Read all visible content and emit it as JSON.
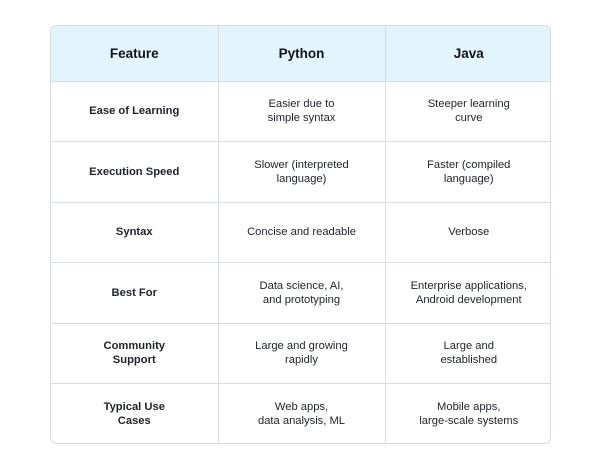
{
  "table": {
    "headers": [
      "Feature",
      "Python",
      "Java"
    ],
    "rows": [
      [
        "Ease of Learning",
        "Easier due to\nsimple syntax",
        "Steeper learning\ncurve"
      ],
      [
        "Execution Speed",
        "Slower (interpreted\nlanguage)",
        "Faster (compiled\nlanguage)"
      ],
      [
        "Syntax",
        "Concise and readable",
        "Verbose"
      ],
      [
        "Best For",
        "Data science, AI,\nand prototyping",
        "Enterprise applications,\nAndroid development"
      ],
      [
        "Community\nSupport",
        "Large and growing\nrapidly",
        "Large and\nestablished"
      ],
      [
        "Typical Use\nCases",
        "Web apps,\ndata analysis, ML",
        "Mobile apps,\nlarge-scale systems"
      ]
    ]
  },
  "colors": {
    "header_bg": "#e3f4fc",
    "border": "#d9dde3",
    "text": "#1f2328"
  }
}
